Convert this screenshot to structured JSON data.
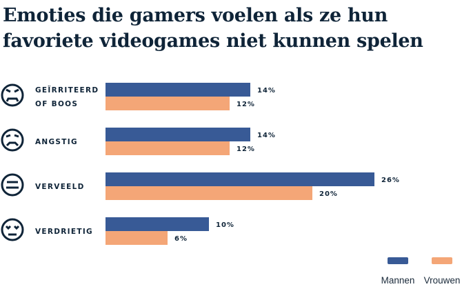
{
  "chart_data": {
    "type": "bar",
    "orientation": "horizontal",
    "title": "Emoties die gamers voelen als ze hun favoriete videogames niet kunnen spelen",
    "categories": [
      {
        "lines": [
          "GEÏRRITEERD",
          "OF BOOS"
        ],
        "icon": "angry-face-icon"
      },
      {
        "lines": [
          "ANGSTIG"
        ],
        "icon": "anxious-face-icon"
      },
      {
        "lines": [
          "VERVEELD"
        ],
        "icon": "bored-face-icon"
      },
      {
        "lines": [
          "VERDRIETIG"
        ],
        "icon": "sad-face-icon"
      }
    ],
    "series": [
      {
        "name": "Mannen",
        "color": "#385a96",
        "values": [
          14,
          14,
          26,
          10
        ]
      },
      {
        "name": "Vrouwen",
        "color": "#f4a677",
        "values": [
          12,
          12,
          20,
          6
        ]
      }
    ],
    "value_suffix": "%",
    "xlim": [
      0,
      26
    ],
    "grid": false,
    "legend_placement": "bottom-right"
  }
}
